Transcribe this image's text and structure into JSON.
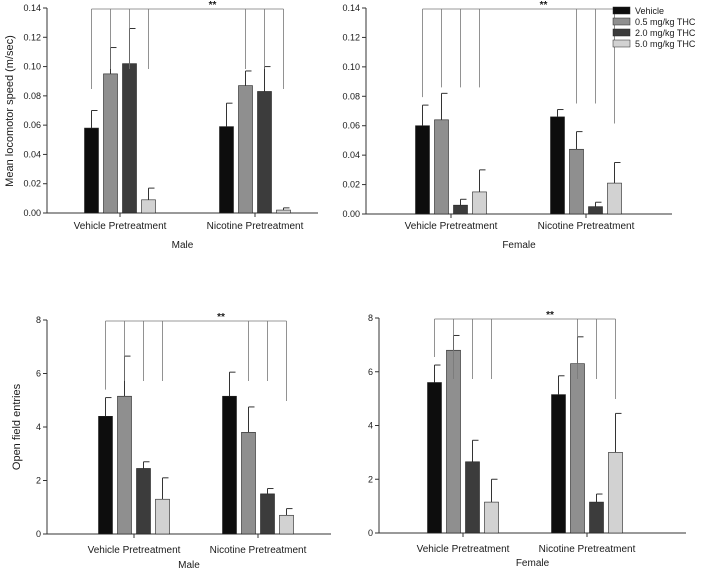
{
  "chart_data": [
    {
      "type": "bar",
      "ylabel": "Mean locomotor speed (m/sec)",
      "xlabel": "Male",
      "ylim": [
        0,
        0.14
      ],
      "yticks": [
        "0.00",
        "0.02",
        "0.04",
        "0.06",
        "0.08",
        "0.10",
        "0.12",
        "0.14"
      ],
      "categories": [
        "Vehicle Pretreatment",
        "Nicotine Pretreatment"
      ],
      "series": [
        {
          "name": "Vehicle",
          "color": "#0d0d0d",
          "values": [
            0.058,
            0.059
          ],
          "errors": [
            0.012,
            0.016
          ]
        },
        {
          "name": "0.5 mg/kg THC",
          "color": "#8f8f8f",
          "values": [
            0.095,
            0.087
          ],
          "errors": [
            0.018,
            0.01
          ]
        },
        {
          "name": "2.0 mg/kg THC",
          "color": "#3c3c3c",
          "values": [
            0.102,
            0.083
          ],
          "errors": [
            0.024,
            0.017
          ]
        },
        {
          "name": "5.0 mg/kg THC",
          "color": "#d2d2d2",
          "values": [
            0.009,
            0.002
          ],
          "errors": [
            0.008,
            0.0015
          ]
        }
      ],
      "significance": "**"
    },
    {
      "type": "bar",
      "ylabel": "",
      "xlabel": "Female",
      "ylim": [
        0,
        0.14
      ],
      "yticks": [
        "0.00",
        "0.02",
        "0.04",
        "0.06",
        "0.08",
        "0.10",
        "0.12",
        "0.14"
      ],
      "categories": [
        "Vehicle Pretreatment",
        "Nicotine Pretreatment"
      ],
      "series": [
        {
          "name": "Vehicle",
          "color": "#0d0d0d",
          "values": [
            0.06,
            0.066
          ],
          "errors": [
            0.014,
            0.005
          ]
        },
        {
          "name": "0.5 mg/kg THC",
          "color": "#8f8f8f",
          "values": [
            0.064,
            0.044
          ],
          "errors": [
            0.018,
            0.012
          ]
        },
        {
          "name": "2.0 mg/kg THC",
          "color": "#3c3c3c",
          "values": [
            0.006,
            0.005
          ],
          "errors": [
            0.004,
            0.003
          ]
        },
        {
          "name": "5.0 mg/kg THC",
          "color": "#d2d2d2",
          "values": [
            0.015,
            0.021
          ],
          "errors": [
            0.015,
            0.014
          ]
        }
      ],
      "significance": "**",
      "legend": "top-right"
    },
    {
      "type": "bar",
      "ylabel": "Open field entries",
      "xlabel": "Male",
      "ylim": [
        0,
        8
      ],
      "yticks": [
        "0",
        "2",
        "4",
        "6",
        "8"
      ],
      "categories": [
        "Vehicle Pretreatment",
        "Nicotine Pretreatment"
      ],
      "series": [
        {
          "name": "Vehicle",
          "color": "#0d0d0d",
          "values": [
            4.4,
            5.15
          ],
          "errors": [
            0.7,
            0.9
          ]
        },
        {
          "name": "0.5 mg/kg THC",
          "color": "#8f8f8f",
          "values": [
            5.15,
            3.8
          ],
          "errors": [
            1.5,
            0.95
          ]
        },
        {
          "name": "2.0 mg/kg THC",
          "color": "#3c3c3c",
          "values": [
            2.45,
            1.5
          ],
          "errors": [
            0.25,
            0.2
          ]
        },
        {
          "name": "5.0 mg/kg THC",
          "color": "#d2d2d2",
          "values": [
            1.3,
            0.7
          ],
          "errors": [
            0.8,
            0.25
          ]
        }
      ],
      "significance": "**"
    },
    {
      "type": "bar",
      "ylabel": "",
      "xlabel": "Female",
      "ylim": [
        0,
        8
      ],
      "yticks": [
        "0",
        "2",
        "4",
        "6",
        "8"
      ],
      "categories": [
        "Vehicle Pretreatment",
        "Nicotine Pretreatment"
      ],
      "series": [
        {
          "name": "Vehicle",
          "color": "#0d0d0d",
          "values": [
            5.6,
            5.15
          ],
          "errors": [
            0.65,
            0.7
          ]
        },
        {
          "name": "0.5 mg/kg THC",
          "color": "#8f8f8f",
          "values": [
            6.8,
            6.3
          ],
          "errors": [
            0.55,
            1.0
          ]
        },
        {
          "name": "2.0 mg/kg THC",
          "color": "#3c3c3c",
          "values": [
            2.65,
            1.15
          ],
          "errors": [
            0.8,
            0.3
          ]
        },
        {
          "name": "5.0 mg/kg THC",
          "color": "#d2d2d2",
          "values": [
            1.15,
            3.0
          ],
          "errors": [
            0.85,
            1.45
          ]
        }
      ],
      "significance": "**"
    }
  ]
}
